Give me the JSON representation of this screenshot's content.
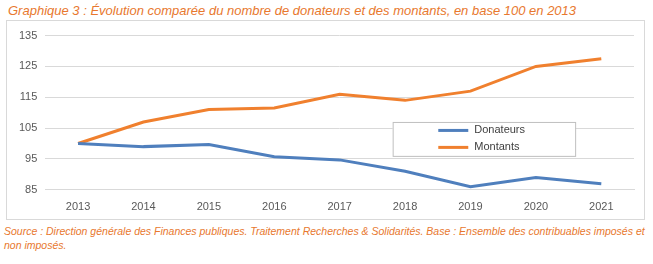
{
  "chart_data": {
    "type": "line",
    "title": "Graphique 3 : Évolution comparée du nombre de donateurs et des montants, en base 100 en 2013",
    "source": "Source : Direction générale des Finances publiques. Traitement Recherches & Solidarités. Base : Ensemble des contribuables imposés et non imposés.",
    "categories": [
      "2013",
      "2014",
      "2015",
      "2016",
      "2017",
      "2018",
      "2019",
      "2020",
      "2021"
    ],
    "series": [
      {
        "name": "Donateurs",
        "color": "#4f7fbd",
        "values": [
          100,
          99,
          99.7,
          95.7,
          94.7,
          91,
          86,
          89,
          87
        ]
      },
      {
        "name": "Montants",
        "color": "#f0802e",
        "values": [
          100,
          107,
          111,
          111.5,
          116,
          114,
          117,
          125,
          127.5
        ]
      }
    ],
    "ylim": [
      85,
      135
    ],
    "yticks": [
      85,
      95,
      105,
      115,
      125,
      135
    ],
    "grid": true,
    "legend": "right"
  }
}
